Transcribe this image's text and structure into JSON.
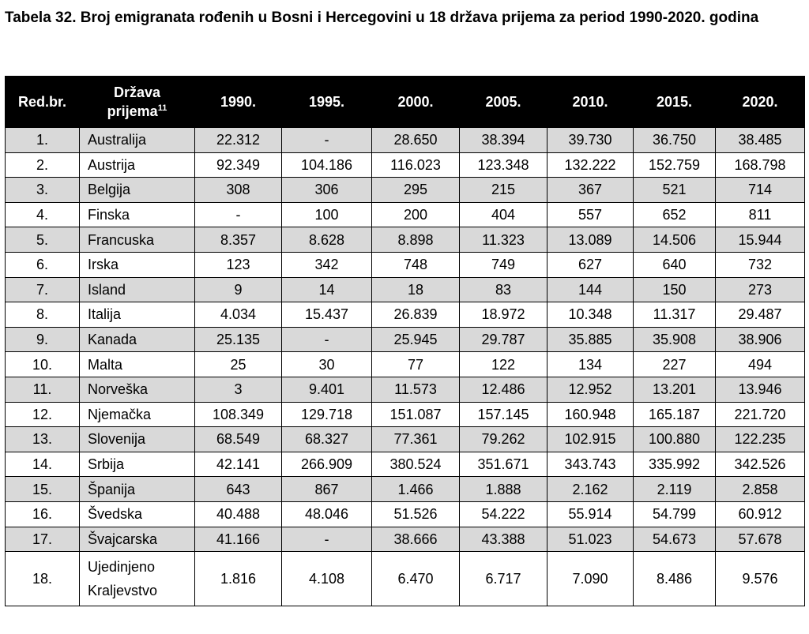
{
  "title": "Tabela 32. Broj emigranata rođenih u Bosni i Hercegovini u 18 država prijema za period 1990-2020. godina",
  "headers": {
    "num": "Red.br.",
    "country_line1": "Država",
    "country_line2": "prijema",
    "country_sup": "11",
    "years": [
      "1990.",
      "1995.",
      "2000.",
      "2005.",
      "2010.",
      "2015.",
      "2020."
    ]
  },
  "rows": [
    {
      "num": "1.",
      "name": "Australija",
      "values": [
        "22.312",
        "-",
        "28.650",
        "38.394",
        "39.730",
        "36.750",
        "38.485"
      ]
    },
    {
      "num": "2.",
      "name": "Austrija",
      "values": [
        "92.349",
        "104.186",
        "116.023",
        "123.348",
        "132.222",
        "152.759",
        "168.798"
      ]
    },
    {
      "num": "3.",
      "name": "Belgija",
      "values": [
        "308",
        "306",
        "295",
        "215",
        "367",
        "521",
        "714"
      ]
    },
    {
      "num": "4.",
      "name": "Finska",
      "values": [
        "-",
        "100",
        "200",
        "404",
        "557",
        "652",
        "811"
      ]
    },
    {
      "num": "5.",
      "name": "Francuska",
      "values": [
        "8.357",
        "8.628",
        "8.898",
        "11.323",
        "13.089",
        "14.506",
        "15.944"
      ]
    },
    {
      "num": "6.",
      "name": "Irska",
      "values": [
        "123",
        "342",
        "748",
        "749",
        "627",
        "640",
        "732"
      ]
    },
    {
      "num": "7.",
      "name": "Island",
      "values": [
        "9",
        "14",
        "18",
        "83",
        "144",
        "150",
        "273"
      ]
    },
    {
      "num": "8.",
      "name": "Italija",
      "values": [
        "4.034",
        "15.437",
        "26.839",
        "18.972",
        "10.348",
        "11.317",
        "29.487"
      ]
    },
    {
      "num": "9.",
      "name": "Kanada",
      "values": [
        "25.135",
        "-",
        "25.945",
        "29.787",
        "35.885",
        "35.908",
        "38.906"
      ]
    },
    {
      "num": "10.",
      "name": "Malta",
      "values": [
        "25",
        "30",
        "77",
        "122",
        "134",
        "227",
        "494"
      ]
    },
    {
      "num": "11.",
      "name": "Norveška",
      "values": [
        "3",
        "9.401",
        "11.573",
        "12.486",
        "12.952",
        "13.201",
        "13.946"
      ]
    },
    {
      "num": "12.",
      "name": "Njemačka",
      "values": [
        "108.349",
        "129.718",
        "151.087",
        "157.145",
        "160.948",
        "165.187",
        "221.720"
      ]
    },
    {
      "num": "13.",
      "name": "Slovenija",
      "values": [
        "68.549",
        "68.327",
        "77.361",
        "79.262",
        "102.915",
        "100.880",
        "122.235"
      ]
    },
    {
      "num": "14.",
      "name": "Srbija",
      "values": [
        "42.141",
        "266.909",
        "380.524",
        "351.671",
        "343.743",
        "335.992",
        "342.526"
      ]
    },
    {
      "num": "15.",
      "name": "Španija",
      "values": [
        "643",
        "867",
        "1.466",
        "1.888",
        "2.162",
        "2.119",
        "2.858"
      ]
    },
    {
      "num": "16.",
      "name": "Švedska",
      "values": [
        "40.488",
        "48.046",
        "51.526",
        "54.222",
        "55.914",
        "54.799",
        "60.912"
      ]
    },
    {
      "num": "17.",
      "name": "Švajcarska",
      "values": [
        "41.166",
        "-",
        "38.666",
        "43.388",
        "51.023",
        "54.673",
        "57.678"
      ]
    },
    {
      "num": "18.",
      "name_line1": "Ujedinjeno",
      "name_line2": "Kraljevstvo",
      "values": [
        "1.816",
        "4.108",
        "6.470",
        "6.717",
        "7.090",
        "8.486",
        "9.576"
      ]
    }
  ],
  "colors": {
    "header_bg": "#000000",
    "header_text": "#ffffff",
    "shade": "#d9d9d9"
  }
}
